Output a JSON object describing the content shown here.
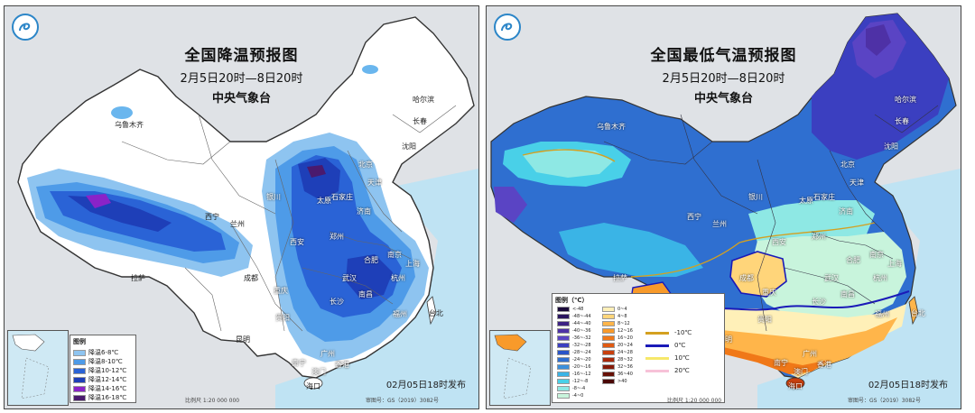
{
  "left": {
    "title": "全国降温预报图",
    "subtitle": "2月5日20时—8日20时",
    "agency": "中央气象台",
    "issued": "02月05日18时发布",
    "scale": "比例尺 1:20 000 000",
    "map_no": "审图号：GS（2019）3082号",
    "legend": {
      "title": "图例",
      "items": [
        {
          "label": "降温6-8℃",
          "color": "#8ec4f0"
        },
        {
          "label": "降温8-10℃",
          "color": "#4e9be8"
        },
        {
          "label": "降温10-12℃",
          "color": "#2a63d6"
        },
        {
          "label": "降温12-14℃",
          "color": "#1e3fb8"
        },
        {
          "label": "降温14-16℃",
          "color": "#8a23c8"
        },
        {
          "label": "降温16-18℃",
          "color": "#4a1a6e"
        }
      ]
    },
    "cities": {
      "urumqi": "乌鲁木齐",
      "harbin": "哈尔滨",
      "changchun": "长春",
      "shenyang": "沈阳",
      "beijing": "北京",
      "tianjin": "天津",
      "shijiazhuang": "石家庄",
      "taiyuan": "太原",
      "jinan": "济南",
      "yinchuan": "银川",
      "xining": "西宁",
      "lanzhou": "兰州",
      "xian": "西安",
      "zhengzhou": "郑州",
      "hefei": "合肥",
      "nanjing": "南京",
      "shanghai": "上海",
      "wuhan": "武汉",
      "hangzhou": "杭州",
      "lhasa": "拉萨",
      "chengdu": "成都",
      "chongqing": "重庆",
      "changsha": "长沙",
      "nanchang": "南昌",
      "guiyang": "贵阳",
      "fuzhou": "福州",
      "kunming": "昆明",
      "taibei": "台北",
      "nanning": "南宁",
      "guangzhou": "广州",
      "xianggang": "香港",
      "aomen": "澳门",
      "haikou": "海口"
    }
  },
  "right": {
    "title": "全国最低气温预报图",
    "subtitle": "2月5日20时—8日20时",
    "agency": "中央气象台",
    "issued": "02月05日18时发布",
    "scale": "比例尺 1:20 000 000",
    "map_no": "审图号：GS（2019）3082号",
    "legend": {
      "title": "图例（℃）",
      "col1": [
        {
          "label": "<-48",
          "color": "#1a0a3a"
        },
        {
          "label": "-48~-44",
          "color": "#2b1660"
        },
        {
          "label": "-44~-40",
          "color": "#3d2384"
        },
        {
          "label": "-40~-36",
          "color": "#4e31a6"
        },
        {
          "label": "-36~-32",
          "color": "#5a44c4"
        },
        {
          "label": "-32~-28",
          "color": "#3b3fc0"
        },
        {
          "label": "-28~-24",
          "color": "#2a55c8"
        },
        {
          "label": "-24~-20",
          "color": "#2f6fd0"
        },
        {
          "label": "-20~-16",
          "color": "#3b8fdc"
        },
        {
          "label": "-16~-12",
          "color": "#3ab4e6"
        },
        {
          "label": "-12~-8",
          "color": "#49d0e8"
        },
        {
          "label": "-8~-4",
          "color": "#8ee8e4"
        },
        {
          "label": "-4~0",
          "color": "#c8f4dc"
        }
      ],
      "col2": [
        {
          "label": "0~4",
          "color": "#fff0b8"
        },
        {
          "label": "4~8",
          "color": "#ffd57a"
        },
        {
          "label": "8~12",
          "color": "#ffb54a"
        },
        {
          "label": "12~16",
          "color": "#f89a2a"
        },
        {
          "label": "16~20",
          "color": "#f07818"
        },
        {
          "label": "20~24",
          "color": "#e05a12"
        },
        {
          "label": "24~28",
          "color": "#c8400e"
        },
        {
          "label": "28~32",
          "color": "#a8280a"
        },
        {
          "label": "32~36",
          "color": "#861a08"
        },
        {
          "label": "36~40",
          "color": "#661006"
        },
        {
          "label": ">40",
          "color": "#4a0804"
        }
      ],
      "lines": [
        {
          "label": "-10℃",
          "color": "#d4a020"
        },
        {
          "label": "0℃",
          "color": "#1a1ab8"
        },
        {
          "label": "10℃",
          "color": "#f6e86a"
        },
        {
          "label": "20℃",
          "color": "#f7c2d8"
        }
      ]
    },
    "cities": {
      "urumqi": "乌鲁木齐",
      "harbin": "哈尔滨",
      "changchun": "长春",
      "shenyang": "沈阳",
      "beijing": "北京",
      "tianjin": "天津",
      "shijiazhuang": "石家庄",
      "taiyuan": "太原",
      "jinan": "济南",
      "yinchuan": "银川",
      "xining": "西宁",
      "lanzhou": "兰州",
      "xian": "西安",
      "zhengzhou": "郑州",
      "hefei": "合肥",
      "nanjing": "南京",
      "shanghai": "上海",
      "wuhan": "武汉",
      "hangzhou": "杭州",
      "lhasa": "拉萨",
      "chengdu": "成都",
      "chongqing": "重庆",
      "changsha": "长沙",
      "nanchang": "南昌",
      "guiyang": "贵阳",
      "fuzhou": "福州",
      "kunming": "昆明",
      "taibei": "台北",
      "nanning": "南宁",
      "guangzhou": "广州",
      "xianggang": "香港",
      "aomen": "澳门",
      "haikou": "海口"
    }
  }
}
